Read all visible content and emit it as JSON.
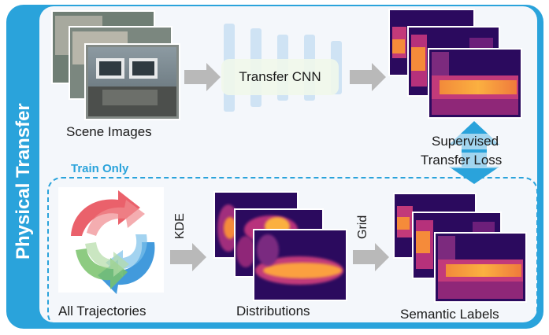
{
  "side_title": "Physical Transfer",
  "scene_label": "Scene Images",
  "cnn_label": "Transfer CNN",
  "loss_label_line1": "Supervised",
  "loss_label_line2": "Transfer Loss",
  "train_only_label": "Train Only",
  "traj_label": "All Trajectories",
  "kde_label": "KDE",
  "dist_label": "Distributions",
  "grid_label": "Grid",
  "semantic_label": "Semantic Labels",
  "colors": {
    "accent_blue": "#2aa3db",
    "heat_dark": "#2b0a5e",
    "heat_mid": "#c23a7a",
    "heat_hot": "#f9a23f",
    "arrow_gray": "#b9b9b9"
  }
}
